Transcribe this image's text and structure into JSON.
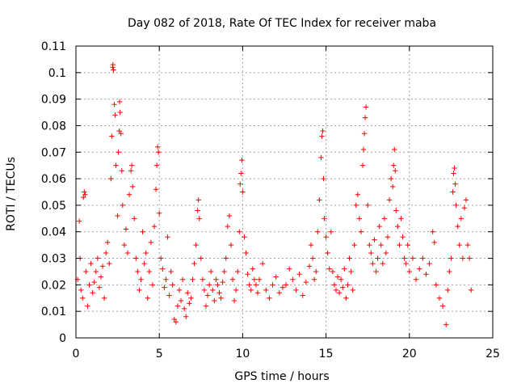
{
  "chart_data": {
    "type": "scatter",
    "title": "Day 082 of 2018, Rate Of TEC Index for receiver maba",
    "xlabel": "GPS time / hours",
    "ylabel": "ROTI / TECUs",
    "xlim": [
      0,
      25
    ],
    "ylim": [
      0,
      0.11
    ],
    "x_ticks": [
      0,
      5,
      10,
      15,
      20,
      25
    ],
    "x_tick_labels": [
      "0",
      "5",
      "10",
      "15",
      "20",
      "25"
    ],
    "y_ticks": [
      0,
      0.01,
      0.02,
      0.03,
      0.04,
      0.05,
      0.06,
      0.07,
      0.08,
      0.09,
      0.1,
      0.11
    ],
    "y_tick_labels": [
      "0",
      "0.01",
      "0.02",
      "0.03",
      "0.04",
      "0.05",
      "0.06",
      "0.07",
      "0.08",
      "0.09",
      "0.1",
      "0.11"
    ],
    "grid": true,
    "marker": "+",
    "series": [
      {
        "name": "ROTI",
        "color": "#ff0000",
        "points": [
          [
            0.1,
            0.022
          ],
          [
            0.2,
            0.044
          ],
          [
            0.25,
            0.03
          ],
          [
            0.3,
            0.018
          ],
          [
            0.4,
            0.015
          ],
          [
            0.45,
            0.053
          ],
          [
            0.5,
            0.055
          ],
          [
            0.55,
            0.054
          ],
          [
            0.6,
            0.025
          ],
          [
            0.7,
            0.012
          ],
          [
            0.8,
            0.02
          ],
          [
            0.9,
            0.028
          ],
          [
            1.0,
            0.017
          ],
          [
            1.1,
            0.021
          ],
          [
            1.2,
            0.025
          ],
          [
            1.3,
            0.03
          ],
          [
            1.4,
            0.019
          ],
          [
            1.5,
            0.023
          ],
          [
            1.6,
            0.027
          ],
          [
            1.7,
            0.015
          ],
          [
            1.8,
            0.032
          ],
          [
            1.9,
            0.036
          ],
          [
            2.0,
            0.028
          ],
          [
            2.1,
            0.06
          ],
          [
            2.15,
            0.076
          ],
          [
            2.2,
            0.102
          ],
          [
            2.22,
            0.103
          ],
          [
            2.25,
            0.101
          ],
          [
            2.3,
            0.088
          ],
          [
            2.35,
            0.084
          ],
          [
            2.4,
            0.065
          ],
          [
            2.5,
            0.046
          ],
          [
            2.55,
            0.07
          ],
          [
            2.6,
            0.078
          ],
          [
            2.62,
            0.089
          ],
          [
            2.65,
            0.085
          ],
          [
            2.7,
            0.077
          ],
          [
            2.75,
            0.063
          ],
          [
            2.8,
            0.05
          ],
          [
            2.9,
            0.035
          ],
          [
            3.0,
            0.041
          ],
          [
            3.1,
            0.032
          ],
          [
            3.2,
            0.054
          ],
          [
            3.3,
            0.063
          ],
          [
            3.35,
            0.065
          ],
          [
            3.4,
            0.057
          ],
          [
            3.5,
            0.045
          ],
          [
            3.6,
            0.03
          ],
          [
            3.7,
            0.025
          ],
          [
            3.8,
            0.018
          ],
          [
            3.9,
            0.022
          ],
          [
            4.0,
            0.04
          ],
          [
            4.1,
            0.028
          ],
          [
            4.2,
            0.032
          ],
          [
            4.3,
            0.015
          ],
          [
            4.4,
            0.025
          ],
          [
            4.5,
            0.036
          ],
          [
            4.6,
            0.02
          ],
          [
            4.7,
            0.042
          ],
          [
            4.8,
            0.056
          ],
          [
            4.85,
            0.065
          ],
          [
            4.9,
            0.072
          ],
          [
            4.95,
            0.07
          ],
          [
            5.0,
            0.047
          ],
          [
            5.1,
            0.03
          ],
          [
            5.2,
            0.026
          ],
          [
            5.3,
            0.019
          ],
          [
            5.4,
            0.022
          ],
          [
            5.5,
            0.038
          ],
          [
            5.6,
            0.016
          ],
          [
            5.7,
            0.025
          ],
          [
            5.8,
            0.02
          ],
          [
            5.9,
            0.007
          ],
          [
            6.0,
            0.006
          ],
          [
            6.1,
            0.012
          ],
          [
            6.2,
            0.018
          ],
          [
            6.3,
            0.014
          ],
          [
            6.4,
            0.022
          ],
          [
            6.5,
            0.011
          ],
          [
            6.6,
            0.008
          ],
          [
            6.7,
            0.017
          ],
          [
            6.8,
            0.013
          ],
          [
            6.9,
            0.015
          ],
          [
            7.0,
            0.022
          ],
          [
            7.1,
            0.028
          ],
          [
            7.2,
            0.035
          ],
          [
            7.3,
            0.048
          ],
          [
            7.35,
            0.052
          ],
          [
            7.4,
            0.045
          ],
          [
            7.5,
            0.03
          ],
          [
            7.6,
            0.022
          ],
          [
            7.7,
            0.018
          ],
          [
            7.8,
            0.012
          ],
          [
            7.9,
            0.016
          ],
          [
            8.0,
            0.02
          ],
          [
            8.1,
            0.025
          ],
          [
            8.2,
            0.018
          ],
          [
            8.3,
            0.014
          ],
          [
            8.4,
            0.022
          ],
          [
            8.5,
            0.02
          ],
          [
            8.6,
            0.017
          ],
          [
            8.7,
            0.015
          ],
          [
            8.8,
            0.021
          ],
          [
            8.9,
            0.025
          ],
          [
            9.0,
            0.03
          ],
          [
            9.1,
            0.042
          ],
          [
            9.2,
            0.046
          ],
          [
            9.3,
            0.035
          ],
          [
            9.4,
            0.022
          ],
          [
            9.5,
            0.014
          ],
          [
            9.6,
            0.018
          ],
          [
            9.7,
            0.025
          ],
          [
            9.8,
            0.04
          ],
          [
            9.85,
            0.058
          ],
          [
            9.9,
            0.062
          ],
          [
            9.95,
            0.067
          ],
          [
            10.0,
            0.055
          ],
          [
            10.1,
            0.038
          ],
          [
            10.2,
            0.032
          ],
          [
            10.3,
            0.024
          ],
          [
            10.4,
            0.02
          ],
          [
            10.5,
            0.018
          ],
          [
            10.6,
            0.026
          ],
          [
            10.7,
            0.022
          ],
          [
            10.8,
            0.02
          ],
          [
            10.9,
            0.017
          ],
          [
            11.0,
            0.022
          ],
          [
            11.2,
            0.028
          ],
          [
            11.4,
            0.018
          ],
          [
            11.6,
            0.015
          ],
          [
            11.8,
            0.02
          ],
          [
            12.0,
            0.023
          ],
          [
            12.2,
            0.017
          ],
          [
            12.4,
            0.019
          ],
          [
            12.6,
            0.02
          ],
          [
            12.8,
            0.026
          ],
          [
            13.0,
            0.022
          ],
          [
            13.2,
            0.018
          ],
          [
            13.4,
            0.024
          ],
          [
            13.6,
            0.016
          ],
          [
            13.8,
            0.021
          ],
          [
            14.0,
            0.027
          ],
          [
            14.1,
            0.035
          ],
          [
            14.2,
            0.03
          ],
          [
            14.3,
            0.022
          ],
          [
            14.4,
            0.025
          ],
          [
            14.5,
            0.04
          ],
          [
            14.6,
            0.052
          ],
          [
            14.7,
            0.068
          ],
          [
            14.75,
            0.076
          ],
          [
            14.8,
            0.078
          ],
          [
            14.85,
            0.06
          ],
          [
            14.9,
            0.045
          ],
          [
            15.0,
            0.038
          ],
          [
            15.1,
            0.032
          ],
          [
            15.2,
            0.026
          ],
          [
            15.3,
            0.04
          ],
          [
            15.4,
            0.025
          ],
          [
            15.5,
            0.02
          ],
          [
            15.6,
            0.018
          ],
          [
            15.7,
            0.023
          ],
          [
            15.8,
            0.017
          ],
          [
            15.9,
            0.022
          ],
          [
            16.0,
            0.019
          ],
          [
            16.1,
            0.026
          ],
          [
            16.2,
            0.015
          ],
          [
            16.3,
            0.02
          ],
          [
            16.4,
            0.03
          ],
          [
            16.5,
            0.025
          ],
          [
            16.6,
            0.018
          ],
          [
            16.7,
            0.035
          ],
          [
            16.8,
            0.05
          ],
          [
            16.9,
            0.054
          ],
          [
            17.0,
            0.045
          ],
          [
            17.1,
            0.04
          ],
          [
            17.2,
            0.065
          ],
          [
            17.25,
            0.071
          ],
          [
            17.3,
            0.077
          ],
          [
            17.35,
            0.083
          ],
          [
            17.4,
            0.087
          ],
          [
            17.5,
            0.05
          ],
          [
            17.6,
            0.035
          ],
          [
            17.7,
            0.032
          ],
          [
            17.8,
            0.028
          ],
          [
            17.9,
            0.037
          ],
          [
            18.0,
            0.025
          ],
          [
            18.1,
            0.03
          ],
          [
            18.2,
            0.042
          ],
          [
            18.3,
            0.035
          ],
          [
            18.4,
            0.028
          ],
          [
            18.5,
            0.045
          ],
          [
            18.6,
            0.032
          ],
          [
            18.7,
            0.038
          ],
          [
            18.8,
            0.052
          ],
          [
            18.9,
            0.06
          ],
          [
            19.0,
            0.057
          ],
          [
            19.05,
            0.065
          ],
          [
            19.1,
            0.071
          ],
          [
            19.15,
            0.063
          ],
          [
            19.2,
            0.048
          ],
          [
            19.3,
            0.042
          ],
          [
            19.4,
            0.035
          ],
          [
            19.5,
            0.045
          ],
          [
            19.6,
            0.038
          ],
          [
            19.7,
            0.03
          ],
          [
            19.8,
            0.028
          ],
          [
            19.9,
            0.035
          ],
          [
            20.0,
            0.025
          ],
          [
            20.2,
            0.03
          ],
          [
            20.4,
            0.022
          ],
          [
            20.6,
            0.026
          ],
          [
            20.8,
            0.03
          ],
          [
            21.0,
            0.024
          ],
          [
            21.2,
            0.028
          ],
          [
            21.4,
            0.04
          ],
          [
            21.5,
            0.036
          ],
          [
            21.6,
            0.02
          ],
          [
            21.8,
            0.015
          ],
          [
            22.0,
            0.012
          ],
          [
            22.2,
            0.005
          ],
          [
            22.3,
            0.018
          ],
          [
            22.4,
            0.025
          ],
          [
            22.5,
            0.03
          ],
          [
            22.6,
            0.055
          ],
          [
            22.65,
            0.062
          ],
          [
            22.7,
            0.064
          ],
          [
            22.75,
            0.058
          ],
          [
            22.8,
            0.05
          ],
          [
            22.9,
            0.042
          ],
          [
            23.0,
            0.035
          ],
          [
            23.1,
            0.045
          ],
          [
            23.2,
            0.03
          ],
          [
            23.3,
            0.049
          ],
          [
            23.4,
            0.052
          ],
          [
            23.5,
            0.035
          ],
          [
            23.6,
            0.03
          ],
          [
            23.7,
            0.018
          ]
        ]
      }
    ]
  }
}
